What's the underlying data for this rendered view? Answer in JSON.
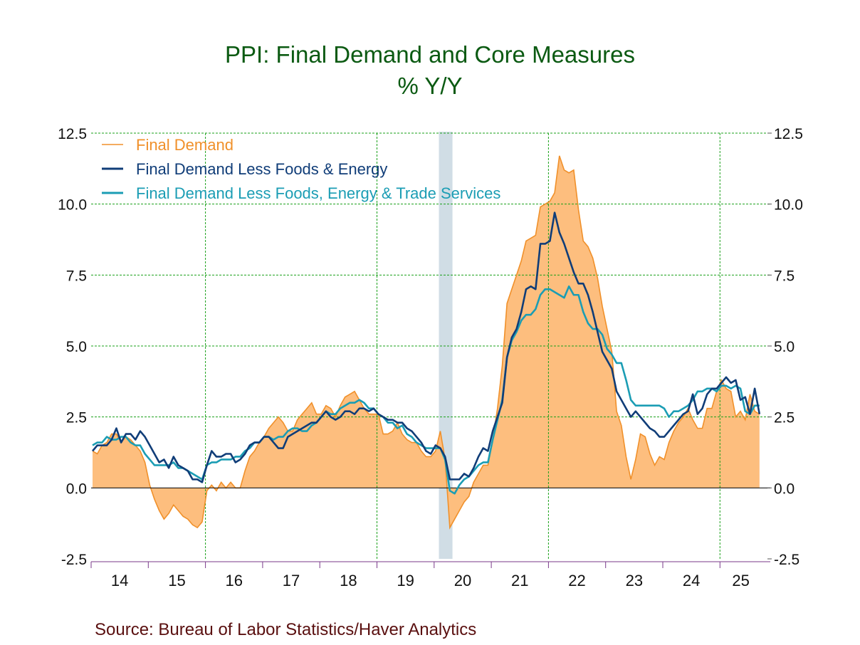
{
  "chart_data": {
    "type": "area+line",
    "title": "PPI: Final Demand and Core Measures",
    "subtitle": "% Y/Y",
    "source": "Source:  Bureau of Labor Statistics/Haver Analytics",
    "y_ticks": [
      "12.5",
      "10.0",
      "7.5",
      "5.0",
      "2.5",
      "0.0",
      "-2.5"
    ],
    "ylim": [
      -2.5,
      12.5
    ],
    "x_tick_labels": [
      "14",
      "15",
      "16",
      "17",
      "18",
      "19",
      "20",
      "21",
      "22",
      "23",
      "24",
      "25"
    ],
    "x_start": "2014-01",
    "x_end": "2025-09",
    "frequency": "monthly",
    "grid": true,
    "legend_position": "top-left",
    "recession_shading": {
      "start": "2020-02",
      "end": "2020-04",
      "color": "#d0dde5"
    },
    "series": [
      {
        "name": "Final Demand",
        "style": "area",
        "color": "#f0902a",
        "fill": "#fdbe7e",
        "values": [
          1.3,
          1.2,
          1.5,
          1.6,
          1.9,
          1.9,
          1.6,
          1.8,
          1.7,
          1.5,
          1.3,
          0.9,
          0.1,
          -0.4,
          -0.8,
          -1.1,
          -0.9,
          -0.6,
          -0.8,
          -1.0,
          -1.1,
          -1.3,
          -1.4,
          -1.2,
          -0.1,
          0.1,
          -0.1,
          0.2,
          0.0,
          0.2,
          0.0,
          0.0,
          0.6,
          1.1,
          1.3,
          1.6,
          1.8,
          2.1,
          2.3,
          2.5,
          2.3,
          2.0,
          2.0,
          2.4,
          2.6,
          2.8,
          3.0,
          2.6,
          2.6,
          2.9,
          2.8,
          2.5,
          2.9,
          3.2,
          3.3,
          3.4,
          3.1,
          2.8,
          2.6,
          2.6,
          2.6,
          1.9,
          1.9,
          2.0,
          2.3,
          1.9,
          1.7,
          1.6,
          1.6,
          1.3,
          1.1,
          1.1,
          1.3,
          2.0,
          1.0,
          -1.4,
          -1.1,
          -0.8,
          -0.5,
          -0.3,
          0.2,
          0.5,
          0.8,
          0.8,
          1.7,
          2.8,
          4.3,
          6.5,
          7.0,
          7.5,
          8.0,
          8.7,
          8.8,
          8.9,
          9.9,
          10.0,
          10.1,
          10.4,
          11.7,
          11.2,
          11.1,
          11.2,
          9.8,
          8.7,
          8.5,
          8.1,
          7.4,
          6.4,
          5.6,
          4.8,
          2.7,
          2.2,
          1.1,
          0.3,
          1.0,
          1.9,
          1.8,
          1.2,
          0.8,
          1.1,
          1.0,
          1.6,
          2.0,
          2.3,
          2.5,
          2.8,
          2.4,
          2.1,
          2.1,
          2.8,
          2.8,
          3.4,
          3.8,
          3.5,
          3.4,
          2.5,
          2.7,
          2.4,
          3.3,
          2.7,
          2.6
        ]
      },
      {
        "name": "Final Demand Less Foods & Energy",
        "style": "line",
        "color": "#103d78",
        "values": [
          1.3,
          1.5,
          1.5,
          1.5,
          1.7,
          2.1,
          1.6,
          1.9,
          1.9,
          1.7,
          2.0,
          1.8,
          1.5,
          1.2,
          0.9,
          1.0,
          0.7,
          1.1,
          0.8,
          0.7,
          0.6,
          0.3,
          0.3,
          0.2,
          0.8,
          1.3,
          1.1,
          1.1,
          1.2,
          1.2,
          0.9,
          1.0,
          1.2,
          1.5,
          1.6,
          1.6,
          1.8,
          1.8,
          1.6,
          1.4,
          1.4,
          1.8,
          1.9,
          2.0,
          2.1,
          2.2,
          2.3,
          2.3,
          2.5,
          2.7,
          2.5,
          2.4,
          2.5,
          2.7,
          2.7,
          2.6,
          2.8,
          2.8,
          2.7,
          2.8,
          2.6,
          2.5,
          2.4,
          2.4,
          2.3,
          2.3,
          2.1,
          2.0,
          1.8,
          1.6,
          1.3,
          1.2,
          1.5,
          1.4,
          1.1,
          0.3,
          0.3,
          0.3,
          0.5,
          0.4,
          0.7,
          1.1,
          1.4,
          1.3,
          2.0,
          2.5,
          3.0,
          4.6,
          5.3,
          5.6,
          6.2,
          7.0,
          7.1,
          7.0,
          8.6,
          8.6,
          8.7,
          9.7,
          9.0,
          8.6,
          8.1,
          7.6,
          7.2,
          7.2,
          6.8,
          6.2,
          5.5,
          4.8,
          4.5,
          4.2,
          3.4,
          3.1,
          2.8,
          2.5,
          2.7,
          2.5,
          2.3,
          2.1,
          2.0,
          1.8,
          1.8,
          2.0,
          2.2,
          2.4,
          2.6,
          2.7,
          3.3,
          2.6,
          2.8,
          3.3,
          3.5,
          3.5,
          3.7,
          3.9,
          3.7,
          3.8,
          3.1,
          3.2,
          2.6,
          3.5,
          2.6
        ]
      },
      {
        "name": "Final Demand Less Foods, Energy & Trade Services",
        "style": "line",
        "color": "#1b9db4",
        "values": [
          1.5,
          1.6,
          1.6,
          1.8,
          1.7,
          1.7,
          1.8,
          1.8,
          1.6,
          1.5,
          1.5,
          1.2,
          1.0,
          0.8,
          0.8,
          0.8,
          0.8,
          0.9,
          0.7,
          0.7,
          0.6,
          0.5,
          0.4,
          0.3,
          0.8,
          0.9,
          0.9,
          1.0,
          1.0,
          1.0,
          1.1,
          1.1,
          1.3,
          1.4,
          1.6,
          1.6,
          1.8,
          1.8,
          1.7,
          1.8,
          1.8,
          2.0,
          2.1,
          2.1,
          2.0,
          2.0,
          2.2,
          2.3,
          2.5,
          2.7,
          2.6,
          2.6,
          2.8,
          2.9,
          3.0,
          3.0,
          3.1,
          3.0,
          2.8,
          2.8,
          2.6,
          2.5,
          2.3,
          2.3,
          2.1,
          2.2,
          1.9,
          1.8,
          1.6,
          1.5,
          1.4,
          1.4,
          1.4,
          1.4,
          1.0,
          -0.1,
          -0.2,
          0.1,
          0.3,
          0.4,
          0.6,
          0.8,
          0.9,
          0.9,
          1.7,
          2.4,
          3.1,
          4.6,
          5.2,
          5.5,
          5.9,
          6.1,
          6.1,
          6.3,
          6.8,
          7.0,
          7.0,
          6.9,
          6.8,
          6.7,
          7.1,
          6.8,
          6.8,
          6.2,
          5.8,
          5.6,
          5.6,
          5.4,
          4.9,
          4.7,
          4.4,
          4.4,
          3.8,
          3.1,
          2.9,
          2.9,
          2.9,
          2.9,
          2.9,
          2.9,
          2.8,
          2.5,
          2.7,
          2.7,
          2.8,
          2.9,
          3.1,
          3.4,
          3.4,
          3.5,
          3.5,
          3.4,
          3.6,
          3.6,
          3.5,
          3.6,
          3.5,
          2.7,
          2.6,
          2.9,
          2.9
        ]
      }
    ]
  }
}
